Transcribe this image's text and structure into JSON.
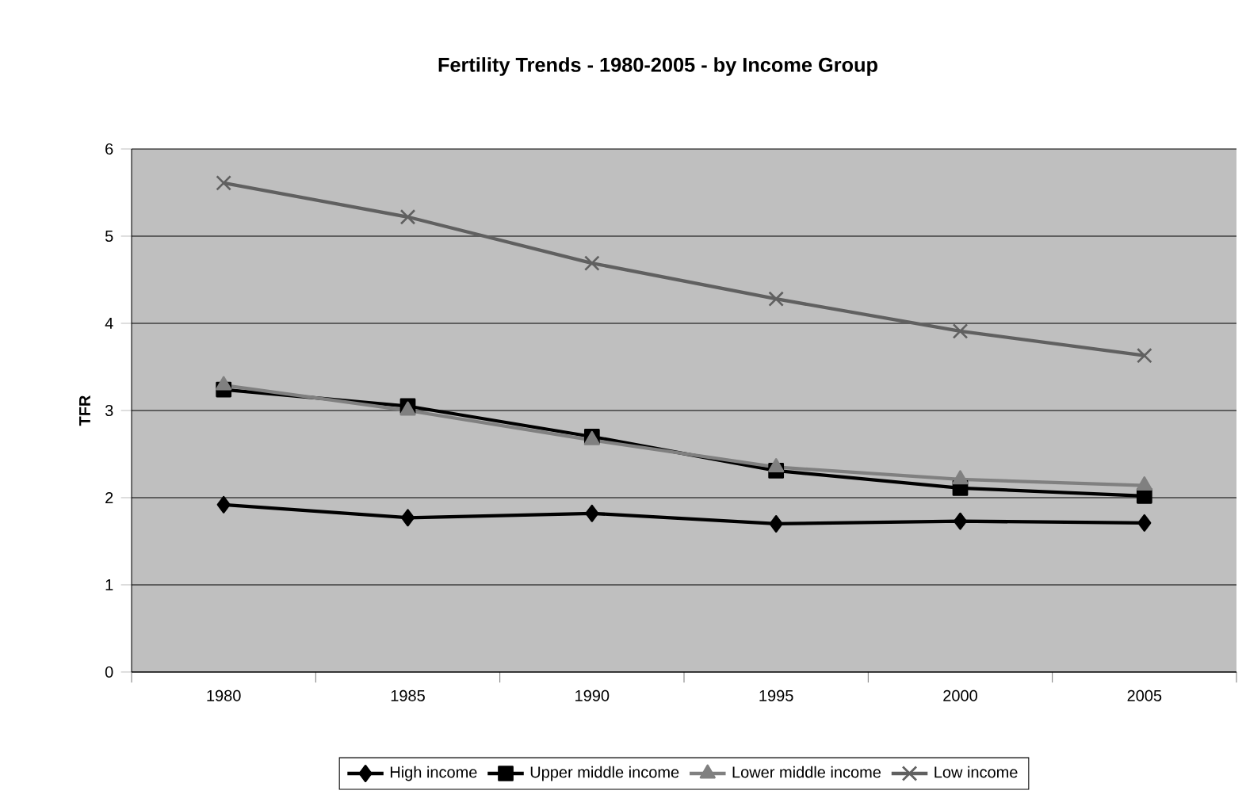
{
  "chart_data": {
    "type": "line",
    "title": "Fertility Trends - 1980-2005 - by Income Group",
    "ylabel": "TFR",
    "categories": [
      "1980",
      "1985",
      "1990",
      "1995",
      "2000",
      "2005"
    ],
    "series": [
      {
        "name": "High income",
        "color": "#000000",
        "marker": "diamond",
        "values": [
          1.92,
          1.77,
          1.82,
          1.7,
          1.73,
          1.71
        ]
      },
      {
        "name": "Upper middle income",
        "color": "#000000",
        "marker": "square",
        "values": [
          3.24,
          3.05,
          2.7,
          2.31,
          2.11,
          2.02
        ]
      },
      {
        "name": "Lower middle income",
        "color": "#808080",
        "marker": "triangle",
        "values": [
          3.29,
          3.0,
          2.66,
          2.35,
          2.21,
          2.14
        ]
      },
      {
        "name": "Low income",
        "color": "#606060",
        "marker": "cross",
        "values": [
          5.61,
          5.22,
          4.69,
          4.28,
          3.91,
          3.63
        ]
      }
    ],
    "ylim": [
      0,
      6
    ],
    "yticks": [
      0,
      1,
      2,
      3,
      4,
      5,
      6
    ],
    "grid": "y",
    "legend": "bottom",
    "line_style": "solid"
  }
}
